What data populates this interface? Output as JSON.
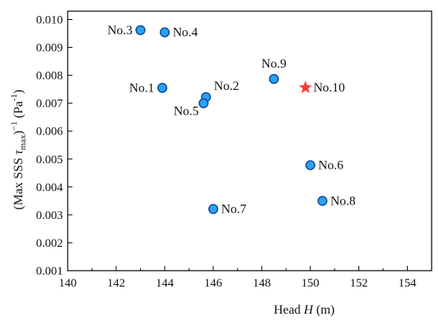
{
  "chart_data": {
    "type": "scatter",
    "xlabel": {
      "prefix": "Head ",
      "var": "H",
      "suffix": " (m)"
    },
    "ylabel": {
      "prefix": "(Max SSS ",
      "var": "τ",
      "sub": "max",
      "mid": ")",
      "sup1": "−1",
      "unit_pre": " (Pa",
      "sup2": "-1",
      "unit_post": ")"
    },
    "xlim": [
      140,
      155
    ],
    "ylim": [
      0.001,
      0.0103
    ],
    "xticks": [
      140,
      142,
      144,
      146,
      148,
      150,
      152,
      154
    ],
    "yticks": [
      0.001,
      0.002,
      0.003,
      0.004,
      0.005,
      0.006,
      0.007,
      0.008,
      0.009,
      0.01
    ],
    "ytick_labels": [
      "0.001",
      "0.002",
      "0.003",
      "0.004",
      "0.005",
      "0.006",
      "0.007",
      "0.008",
      "0.009",
      "0.010"
    ],
    "grid": false,
    "colors": {
      "marker_fill": "#29a3f0",
      "marker_edge": "#0d47a1",
      "star": "#ff3b3b",
      "axis": "#000000"
    },
    "points": [
      {
        "label": "No.1",
        "x": 143.9,
        "y": 0.00755,
        "marker": "circle",
        "label_pos": "left"
      },
      {
        "label": "No.2",
        "x": 145.7,
        "y": 0.00722,
        "marker": "circle",
        "label_pos": "upper-right"
      },
      {
        "label": "No.3",
        "x": 143.0,
        "y": 0.00962,
        "marker": "circle",
        "label_pos": "left"
      },
      {
        "label": "No.4",
        "x": 144.0,
        "y": 0.00954,
        "marker": "circle",
        "label_pos": "right"
      },
      {
        "label": "No.5",
        "x": 145.6,
        "y": 0.007,
        "marker": "circle",
        "label_pos": "lower-left"
      },
      {
        "label": "No.6",
        "x": 150.0,
        "y": 0.00478,
        "marker": "circle",
        "label_pos": "right"
      },
      {
        "label": "No.7",
        "x": 146.0,
        "y": 0.00321,
        "marker": "circle",
        "label_pos": "right"
      },
      {
        "label": "No.8",
        "x": 150.5,
        "y": 0.0035,
        "marker": "circle",
        "label_pos": "right"
      },
      {
        "label": "No.9",
        "x": 148.5,
        "y": 0.00787,
        "marker": "circle",
        "label_pos": "above"
      },
      {
        "label": "No.10",
        "x": 149.8,
        "y": 0.00756,
        "marker": "star",
        "label_pos": "right"
      }
    ]
  }
}
